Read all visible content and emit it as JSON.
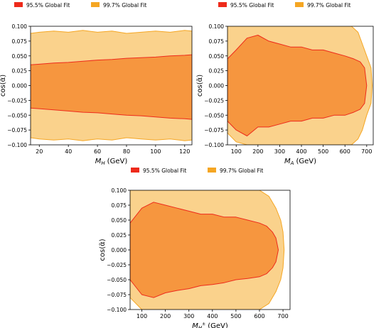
{
  "colors": {
    "fit_95_5": "#ee2a1b",
    "fit_99_7": "#f5a623",
    "region_95_5": "#f6963f",
    "region_99_7": "#fad28c"
  },
  "legend": {
    "fit_95_5": "95.5% Global Fit",
    "fit_99_7": "99.7% Global Fit"
  },
  "chart_data": [
    {
      "type": "area",
      "id": "MH",
      "xlabel_base": "M",
      "xlabel_sub": "H",
      "xlabel_unit": "(GeV)",
      "ylabel": "cos(α̃)",
      "xlim": [
        14,
        125
      ],
      "ylim": [
        -0.1,
        0.1
      ],
      "xticks": [
        20,
        40,
        60,
        80,
        100,
        120
      ],
      "xtick_labels": [
        "20",
        "40",
        "60",
        "80",
        "100",
        "120"
      ],
      "yticks": [
        0.1,
        0.075,
        0.05,
        0.025,
        0.0,
        -0.025,
        -0.05,
        -0.075,
        -0.1
      ],
      "ytick_labels": [
        "0.100",
        "0.075",
        "0.050",
        "0.025",
        "0.000",
        "−0.025",
        "−0.050",
        "−0.075",
        "−0.100"
      ],
      "legend": "top-left",
      "series": [
        {
          "name": "99.7% Global Fit",
          "x": [
            14,
            20,
            30,
            40,
            50,
            60,
            70,
            80,
            90,
            100,
            110,
            120,
            125
          ],
          "low": [
            -0.088,
            -0.09,
            -0.092,
            -0.09,
            -0.093,
            -0.09,
            -0.092,
            -0.088,
            -0.09,
            -0.092,
            -0.09,
            -0.093,
            -0.092
          ],
          "high": [
            0.088,
            0.09,
            0.092,
            0.09,
            0.093,
            0.09,
            0.092,
            0.088,
            0.09,
            0.092,
            0.09,
            0.093,
            0.092
          ]
        },
        {
          "name": "95.5% Global Fit",
          "x": [
            14,
            20,
            30,
            40,
            50,
            60,
            70,
            80,
            90,
            100,
            110,
            120,
            125
          ],
          "low": [
            -0.038,
            -0.039,
            -0.041,
            -0.043,
            -0.045,
            -0.046,
            -0.048,
            -0.05,
            -0.051,
            -0.053,
            -0.055,
            -0.056,
            -0.057
          ],
          "high": [
            0.035,
            0.036,
            0.038,
            0.039,
            0.041,
            0.043,
            0.044,
            0.046,
            0.047,
            0.048,
            0.05,
            0.051,
            0.052
          ]
        }
      ]
    },
    {
      "type": "area",
      "id": "MA",
      "xlabel_base": "M",
      "xlabel_sub": "A",
      "xlabel_unit": "(GeV)",
      "ylabel": "cos(α̃)",
      "xlim": [
        60,
        730
      ],
      "ylim": [
        -0.1,
        0.1
      ],
      "xticks": [
        100,
        200,
        300,
        400,
        500,
        600,
        700
      ],
      "xtick_labels": [
        "100",
        "200",
        "300",
        "400",
        "500",
        "600",
        "700"
      ],
      "yticks": [
        0.1,
        0.075,
        0.05,
        0.025,
        0.0,
        -0.025,
        -0.05,
        -0.075,
        -0.1
      ],
      "ytick_labels": [
        "0.100",
        "0.075",
        "0.050",
        "0.025",
        "0.000",
        "−0.025",
        "−0.050",
        "−0.075",
        "−0.100"
      ],
      "legend": "top-center",
      "series": [
        {
          "name": "99.7% Global Fit",
          "x": [
            60,
            100,
            150,
            200,
            250,
            300,
            350,
            400,
            450,
            500,
            550,
            600,
            630,
            660,
            680,
            700,
            720,
            725
          ],
          "low": [
            -0.08,
            -0.095,
            -0.1,
            -0.1,
            -0.1,
            -0.1,
            -0.1,
            -0.1,
            -0.1,
            -0.1,
            -0.1,
            -0.1,
            -0.1,
            -0.09,
            -0.075,
            -0.05,
            -0.03,
            0.0
          ],
          "high": [
            0.1,
            0.1,
            0.1,
            0.1,
            0.1,
            0.1,
            0.1,
            0.1,
            0.1,
            0.1,
            0.1,
            0.1,
            0.1,
            0.09,
            0.07,
            0.05,
            0.03,
            0.0
          ]
        },
        {
          "name": "95.5% Global Fit",
          "x": [
            60,
            100,
            150,
            200,
            250,
            300,
            350,
            400,
            450,
            500,
            550,
            600,
            640,
            670,
            690,
            700
          ],
          "low": [
            -0.06,
            -0.075,
            -0.085,
            -0.07,
            -0.07,
            -0.065,
            -0.06,
            -0.06,
            -0.055,
            -0.055,
            -0.05,
            -0.05,
            -0.045,
            -0.04,
            -0.03,
            0.0
          ],
          "high": [
            0.045,
            0.06,
            0.08,
            0.085,
            0.075,
            0.07,
            0.065,
            0.065,
            0.06,
            0.06,
            0.055,
            0.05,
            0.045,
            0.04,
            0.03,
            0.0
          ]
        }
      ]
    },
    {
      "type": "area",
      "id": "MHpm",
      "xlabel_base": "M",
      "xlabel_sub": "H",
      "xlabel_sup": "±",
      "xlabel_unit": "(GeV)",
      "ylabel": "cos(α̃)",
      "xlim": [
        50,
        730
      ],
      "ylim": [
        -0.1,
        0.1
      ],
      "xticks": [
        100,
        200,
        300,
        400,
        500,
        600,
        700
      ],
      "xtick_labels": [
        "100",
        "200",
        "300",
        "400",
        "500",
        "600",
        "700"
      ],
      "yticks": [
        0.1,
        0.075,
        0.05,
        0.025,
        0.0,
        -0.025,
        -0.05,
        -0.075,
        -0.1
      ],
      "ytick_labels": [
        "0.100",
        "0.075",
        "0.050",
        "0.025",
        "0.000",
        "−0.025",
        "−0.050",
        "−0.075",
        "−0.100"
      ],
      "legend": "top-center",
      "series": [
        {
          "name": "99.7% Global Fit",
          "x": [
            50,
            100,
            150,
            200,
            250,
            300,
            350,
            400,
            450,
            500,
            550,
            600,
            640,
            670,
            690,
            700,
            705
          ],
          "low": [
            -0.08,
            -0.1,
            -0.1,
            -0.1,
            -0.1,
            -0.1,
            -0.1,
            -0.1,
            -0.1,
            -0.1,
            -0.1,
            -0.1,
            -0.09,
            -0.07,
            -0.05,
            -0.03,
            0.0
          ],
          "high": [
            0.1,
            0.1,
            0.1,
            0.1,
            0.1,
            0.1,
            0.1,
            0.1,
            0.1,
            0.1,
            0.1,
            0.1,
            0.09,
            0.07,
            0.05,
            0.03,
            0.0
          ]
        },
        {
          "name": "95.5% Global Fit",
          "x": [
            50,
            100,
            150,
            200,
            250,
            300,
            350,
            400,
            450,
            500,
            550,
            600,
            630,
            655,
            670,
            680
          ],
          "low": [
            -0.05,
            -0.075,
            -0.08,
            -0.072,
            -0.068,
            -0.065,
            -0.06,
            -0.058,
            -0.055,
            -0.05,
            -0.048,
            -0.045,
            -0.04,
            -0.03,
            -0.02,
            0.0
          ],
          "high": [
            0.045,
            0.07,
            0.08,
            0.075,
            0.07,
            0.065,
            0.06,
            0.06,
            0.055,
            0.055,
            0.05,
            0.045,
            0.04,
            0.03,
            0.02,
            0.0
          ]
        }
      ]
    }
  ]
}
